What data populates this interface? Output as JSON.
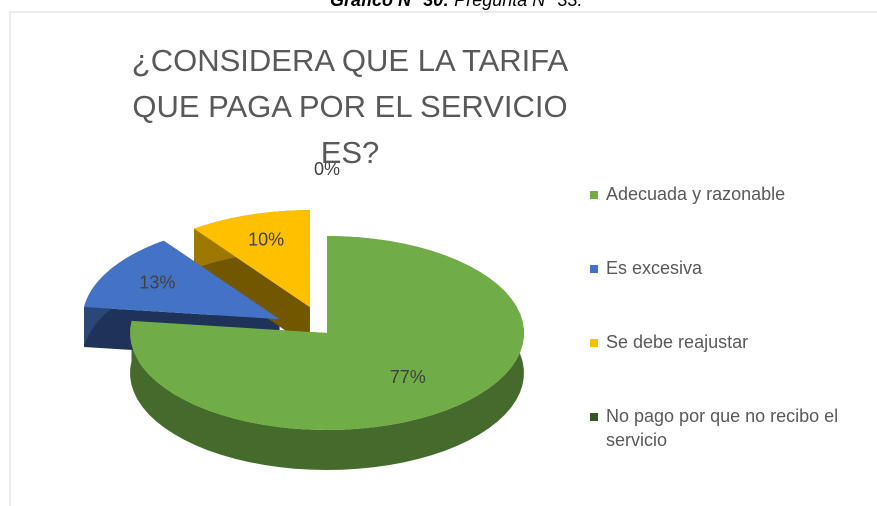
{
  "caption": {
    "label": "Gráfico N° 30:",
    "text": "Pregunta N° 33."
  },
  "chart_data": {
    "type": "pie3d",
    "title": "¿CONSIDERA QUE LA TARIFA QUE PAGA POR EL SERVICIO ES?",
    "categories": [
      "Adecuada y razonable",
      "Es excesiva",
      "Se debe reajustar",
      "No pago por que no recibo el servicio"
    ],
    "values": [
      77,
      13,
      10,
      0
    ],
    "value_labels": [
      "77%",
      "13%",
      "10%",
      "0%"
    ],
    "colors": [
      "#70ad47",
      "#4472c4",
      "#ffc000",
      "#385723"
    ],
    "legend": "right"
  }
}
